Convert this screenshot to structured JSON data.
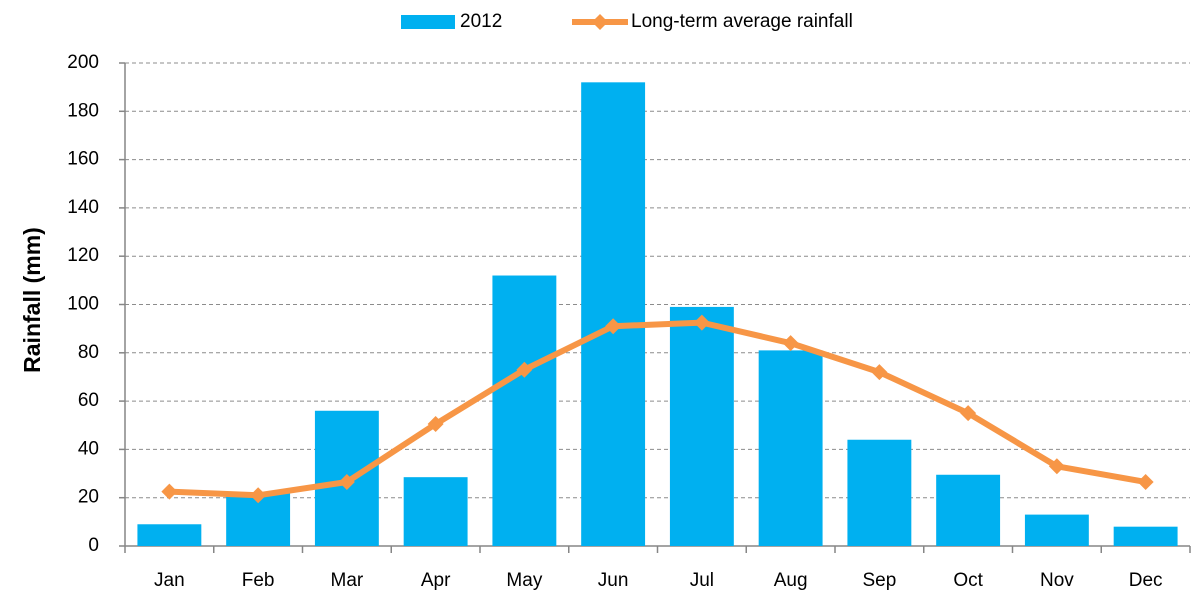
{
  "chart_data": {
    "type": "bar",
    "y_label": "Rainfall (mm)",
    "categories": [
      "Jan",
      "Feb",
      "Mar",
      "Apr",
      "May",
      "Jun",
      "Jul",
      "Aug",
      "Sep",
      "Oct",
      "Nov",
      "Dec"
    ],
    "series": [
      {
        "name": "2012",
        "type": "bar",
        "color": "#00b0f0",
        "values": [
          9,
          22,
          56,
          28.5,
          112,
          192,
          99,
          81,
          44,
          29.5,
          13,
          8
        ]
      },
      {
        "name": "Long-term average rainfall",
        "type": "line",
        "color": "#f79646",
        "values": [
          22.5,
          21,
          26.5,
          50.5,
          73,
          91,
          92.5,
          84,
          72,
          55,
          33,
          26.5
        ]
      }
    ],
    "ylim": [
      0,
      200
    ],
    "yticks": [
      0,
      20,
      40,
      60,
      80,
      100,
      120,
      140,
      160,
      180,
      200
    ],
    "grid": true
  }
}
